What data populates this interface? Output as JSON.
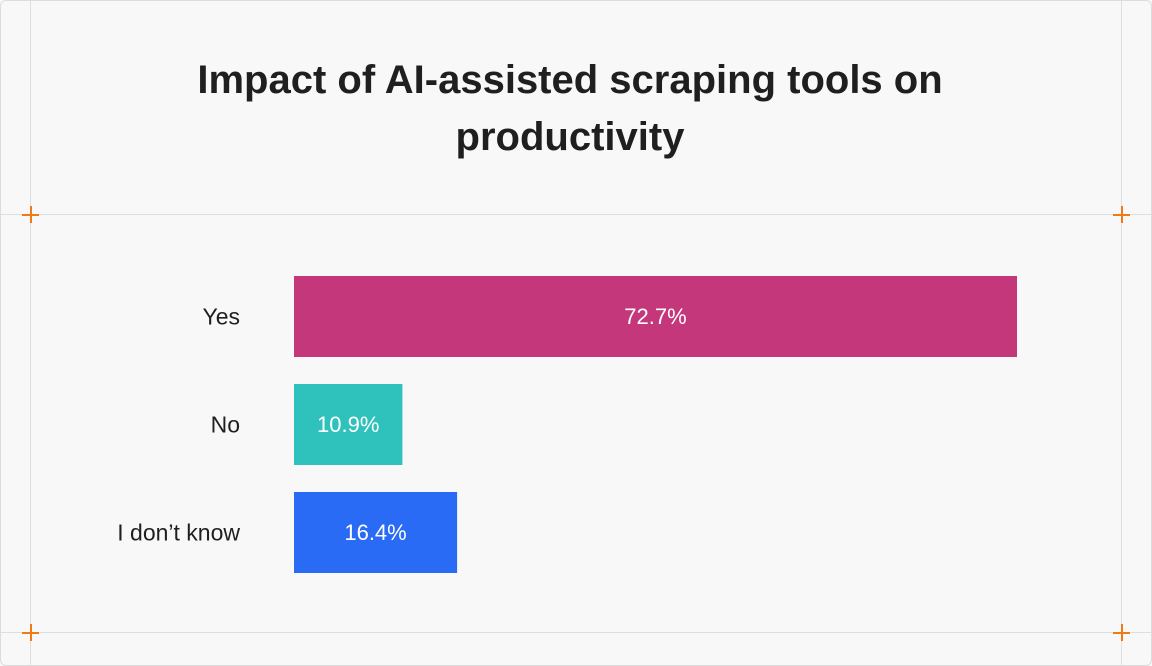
{
  "chart_data": {
    "type": "bar",
    "orientation": "horizontal",
    "title": "Impact of AI-assisted scraping tools on productivity",
    "categories": [
      "Yes",
      "No",
      "I don’t know"
    ],
    "values": [
      72.7,
      10.9,
      16.4
    ],
    "value_labels": [
      "72.7%",
      "10.9%",
      "16.4%"
    ],
    "colors": [
      "#c4387b",
      "#2fc2bd",
      "#2a6bf5"
    ],
    "xlim": [
      0,
      100
    ],
    "grid": false,
    "legend": "none"
  }
}
